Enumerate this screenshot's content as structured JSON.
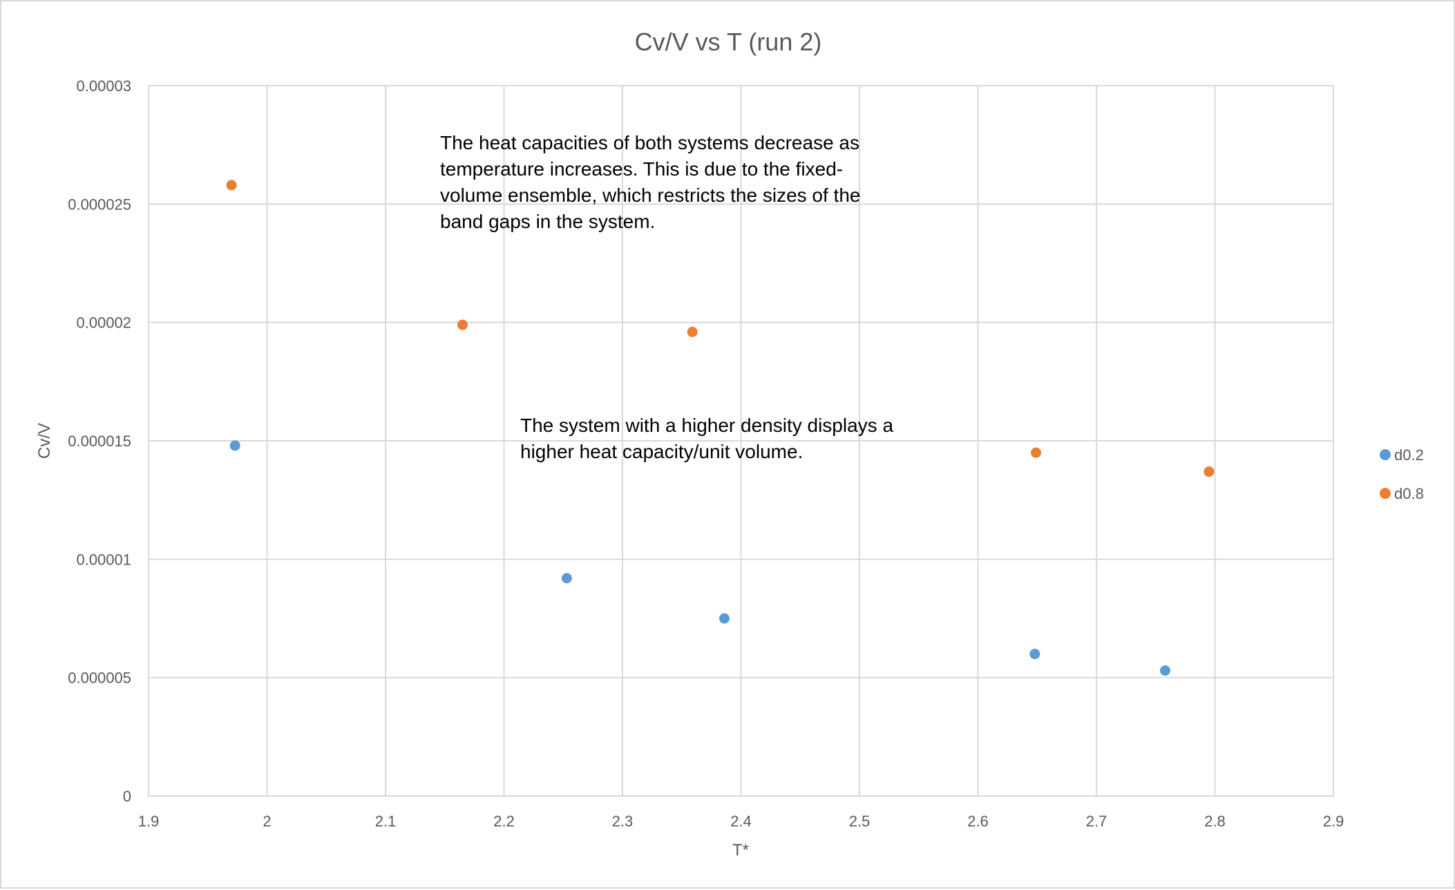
{
  "chart_data": {
    "type": "scatter",
    "title": "Cv/V vs T (run 2)",
    "xlabel": "T*",
    "ylabel": "Cv/V",
    "xlim": [
      1.9,
      2.9
    ],
    "ylim": [
      0,
      3e-05
    ],
    "x_ticks": [
      "1.9",
      "2",
      "2.1",
      "2.2",
      "2.3",
      "2.4",
      "2.5",
      "2.6",
      "2.7",
      "2.8",
      "2.9"
    ],
    "y_ticks": [
      "0",
      "0.000005",
      "0.00001",
      "0.000015",
      "0.00002",
      "0.000025",
      "0.00003"
    ],
    "grid": true,
    "legend_position": "right",
    "series": [
      {
        "name": "d0.2",
        "color": "#5b9bd5",
        "points": [
          {
            "x": 1.973,
            "y": 1.48e-05
          },
          {
            "x": 2.253,
            "y": 9.2e-06
          },
          {
            "x": 2.386,
            "y": 7.5e-06
          },
          {
            "x": 2.648,
            "y": 6e-06
          },
          {
            "x": 2.758,
            "y": 5.3e-06
          }
        ]
      },
      {
        "name": "d0.8",
        "color": "#ed7d31",
        "points": [
          {
            "x": 1.97,
            "y": 2.58e-05
          },
          {
            "x": 2.165,
            "y": 1.99e-05
          },
          {
            "x": 2.359,
            "y": 1.96e-05
          },
          {
            "x": 2.649,
            "y": 1.45e-05
          },
          {
            "x": 2.795,
            "y": 1.37e-05
          }
        ]
      }
    ],
    "annotations": [
      {
        "lines": [
          "The heat capacities of both systems decrease as",
          "temperature increases. This is due to the fixed-",
          "volume ensemble, which restricts the sizes of the",
          "band gaps in the system."
        ]
      },
      {
        "lines": [
          "The system with a higher density displays a",
          "higher heat capacity/unit volume."
        ]
      }
    ]
  }
}
